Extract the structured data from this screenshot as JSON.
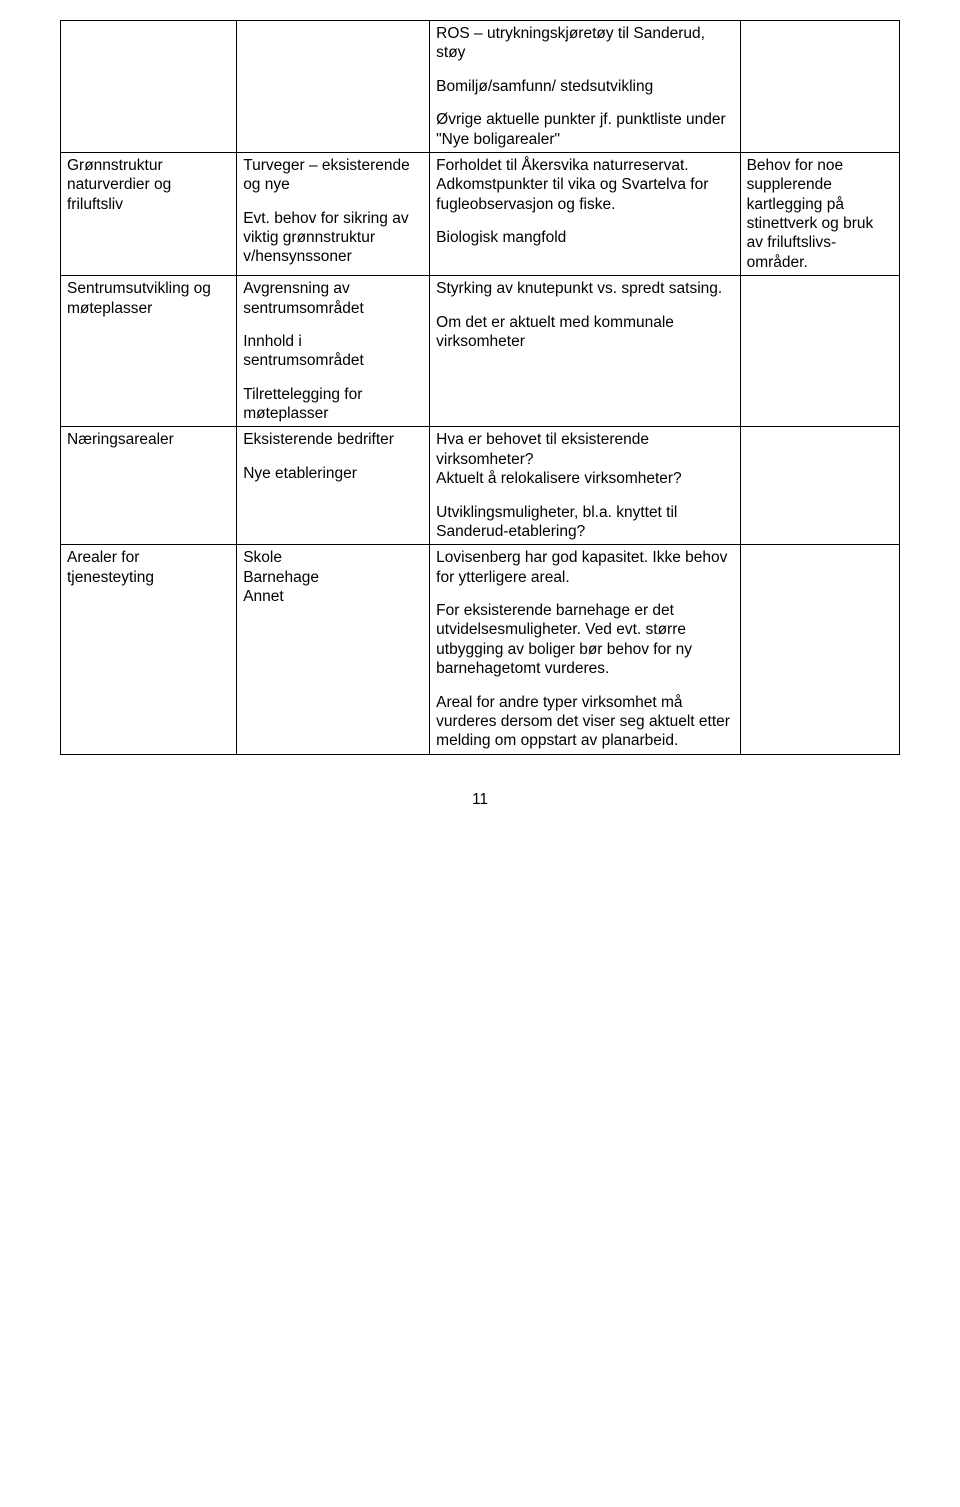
{
  "pageNumber": "11",
  "rows": [
    {
      "c1": [],
      "c2": [],
      "c3": [
        "ROS – utrykningskjøretøy til Sanderud, støy",
        "Bomiljø/samfunn/ stedsutvikling"
      ],
      "c4": []
    },
    {
      "c1": [
        "Grønnstruktur naturverdier og friluftsliv"
      ],
      "c2": [
        "Turveger – eksisterende og nye",
        "Evt. behov for sikring av viktig grønnstruktur v/hensynssoner"
      ],
      "c3": [
        "Øvrige aktuelle punkter jf. punktliste under \"Nye boligarealer\"",
        "Forholdet til Åkersvika naturreservat. Adkomstpunkter til vika og Svartelva for fugleobservasjon og fiske.",
        "Biologisk mangfold"
      ],
      "c4": [
        "Behov for noe supplerende kartlegging på stinettverk og bruk av friluftslivs-områder."
      ]
    },
    {
      "c1": [
        "Sentrumsutvikling og møteplasser"
      ],
      "c2": [
        "Avgrensning av sentrumsområdet",
        "Innhold i sentrumsområdet",
        "Tilrettelegging for møteplasser"
      ],
      "c3": [
        "Styrking av knutepunkt vs. spredt satsing.",
        "Om det er aktuelt med kommunale virksomheter"
      ],
      "c4": []
    },
    {
      "c1": [
        "Næringsarealer"
      ],
      "c2": [
        "Eksisterende bedrifter",
        "Nye etableringer"
      ],
      "c3": [
        "Hva er behovet til eksisterende virksomheter?",
        "Aktuelt å relokalisere virksomheter?",
        "Utviklingsmuligheter, bl.a. knyttet til Sanderud-etablering?"
      ],
      "c4": []
    },
    {
      "c1": [
        "Arealer for tjenesteyting"
      ],
      "c2": [
        "Skole",
        "Barnehage",
        "Annet"
      ],
      "c3": [
        "Lovisenberg har god kapasitet. Ikke behov for ytterligere areal.",
        "For eksisterende barnehage er det utvidelsesmuligheter. Ved evt. større utbygging av boliger bør behov for ny barnehagetomt vurderes.",
        "Areal for andre typer virksomhet må vurderes dersom det viser seg aktuelt etter melding om oppstart av planarbeid."
      ],
      "c4": []
    }
  ]
}
